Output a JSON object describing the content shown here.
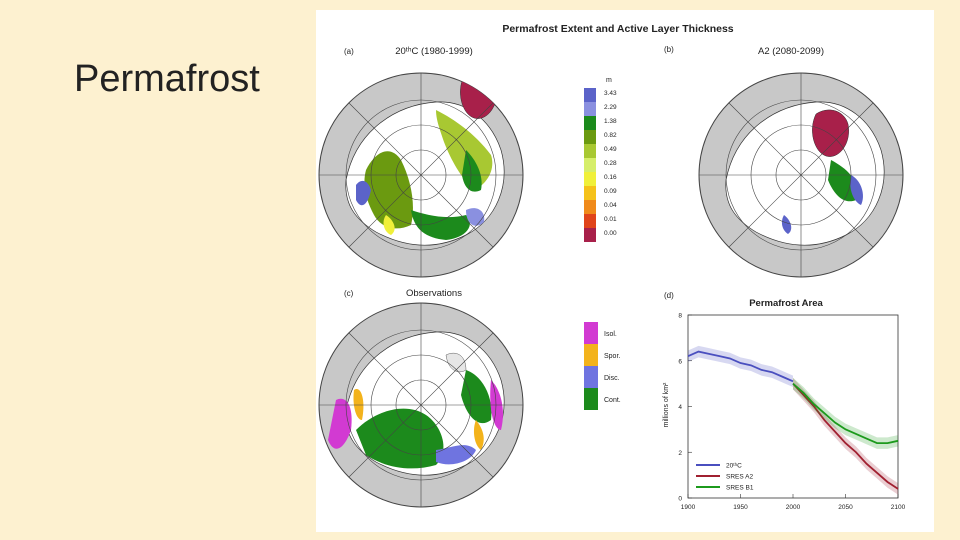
{
  "slide": {
    "title": "Permafrost"
  },
  "figure": {
    "title": "Permafrost Extent and Active Layer Thickness",
    "panels": {
      "a": {
        "tag": "(a)",
        "title": "20ᵗʰC (1980-1999)"
      },
      "b": {
        "tag": "(b)",
        "title": "A2 (2080-2099)"
      },
      "c": {
        "tag": "(c)",
        "title": "Observations"
      },
      "d": {
        "tag": "(d)",
        "title": "Permafrost Area"
      }
    },
    "alt_legend": {
      "unit": "m",
      "entries": [
        {
          "label": "3.43",
          "color": "#5b63c9"
        },
        {
          "label": "2.29",
          "color": "#8a90e0"
        },
        {
          "label": "1.38",
          "color": "#1c8a1c"
        },
        {
          "label": "0.82",
          "color": "#6b9a10"
        },
        {
          "label": "0.49",
          "color": "#a8c832"
        },
        {
          "label": "0.28",
          "color": "#d6ee6a"
        },
        {
          "label": "0.16",
          "color": "#f0f03a"
        },
        {
          "label": "0.09",
          "color": "#f5c21a"
        },
        {
          "label": "0.04",
          "color": "#f08a1a"
        },
        {
          "label": "0.01",
          "color": "#e0441a"
        },
        {
          "label": "0.00",
          "color": "#a8204a"
        }
      ]
    },
    "obs_legend": {
      "entries": [
        {
          "label": "Isol.",
          "color": "#d23ad2"
        },
        {
          "label": "Spor.",
          "color": "#f3b31c"
        },
        {
          "label": "Disc.",
          "color": "#6f74e0"
        },
        {
          "label": "Cont.",
          "color": "#1c8a1c"
        }
      ]
    }
  },
  "chart_data": {
    "type": "line",
    "title": "Permafrost Area",
    "xlabel": "",
    "ylabel": "millions of km²",
    "xlim": [
      1900,
      2100
    ],
    "ylim": [
      0,
      8
    ],
    "xticks": [
      1900,
      1950,
      2000,
      2050,
      2100
    ],
    "yticks": [
      0,
      2,
      4,
      6,
      8
    ],
    "series": [
      {
        "name": "20ᵗʰC",
        "color": "#4a4fbf",
        "x": [
          1900,
          1910,
          1920,
          1930,
          1940,
          1950,
          1960,
          1970,
          1980,
          1990,
          2000
        ],
        "y": [
          6.2,
          6.4,
          6.3,
          6.2,
          6.1,
          5.9,
          5.8,
          5.6,
          5.5,
          5.3,
          5.1
        ]
      },
      {
        "name": "SRES A2",
        "color": "#a02030",
        "x": [
          2000,
          2010,
          2020,
          2030,
          2040,
          2050,
          2060,
          2070,
          2080,
          2090,
          2100
        ],
        "y": [
          5.0,
          4.5,
          4.0,
          3.4,
          2.9,
          2.4,
          2.0,
          1.5,
          1.1,
          0.7,
          0.4
        ]
      },
      {
        "name": "SRES B1",
        "color": "#1c9a1c",
        "x": [
          2000,
          2010,
          2020,
          2030,
          2040,
          2050,
          2060,
          2070,
          2080,
          2090,
          2100
        ],
        "y": [
          5.0,
          4.6,
          4.1,
          3.7,
          3.3,
          3.0,
          2.8,
          2.6,
          2.4,
          2.4,
          2.5
        ]
      }
    ]
  }
}
